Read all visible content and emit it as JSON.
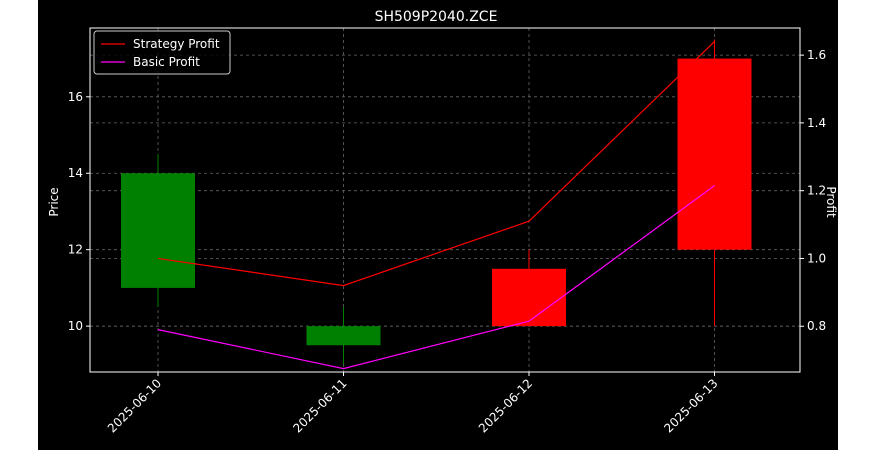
{
  "chart_data": {
    "type": "candlestick",
    "title": "SH509P2040.ZCE",
    "xlabel": "",
    "ylabel": "Price",
    "y2label": "Profit",
    "categories": [
      "2025-06-10",
      "2025-06-11",
      "2025-06-12",
      "2025-06-13"
    ],
    "ohlc": [
      {
        "open": 11.0,
        "high": 14.5,
        "low": 10.5,
        "close": 14.0,
        "color": "#008000"
      },
      {
        "open": 9.5,
        "high": 10.5,
        "low": 9.0,
        "close": 10.0,
        "color": "#008000"
      },
      {
        "open": 11.5,
        "high": 12.0,
        "low": 10.0,
        "close": 10.0,
        "color": "#ff0000"
      },
      {
        "open": 17.0,
        "high": 17.5,
        "low": 10.0,
        "close": 12.0,
        "color": "#ff0000"
      }
    ],
    "series": [
      {
        "name": "Strategy Profit",
        "axis": "right",
        "color": "#ff0000",
        "values": [
          1.0,
          0.92,
          1.11,
          1.64
        ]
      },
      {
        "name": "Basic Profit",
        "axis": "right",
        "color": "#ff00ff",
        "values": [
          0.79,
          0.675,
          0.815,
          1.215
        ]
      }
    ],
    "ylim": [
      8.8,
      17.8
    ],
    "y2lim": [
      0.665,
      1.68
    ],
    "yticks": [
      10,
      12,
      14,
      16
    ],
    "y2ticks": [
      0.8,
      1.0,
      1.2,
      1.4,
      1.6
    ],
    "grid": true,
    "legend": "upper-left",
    "background": "#000000",
    "text_color": "#ffffff"
  }
}
